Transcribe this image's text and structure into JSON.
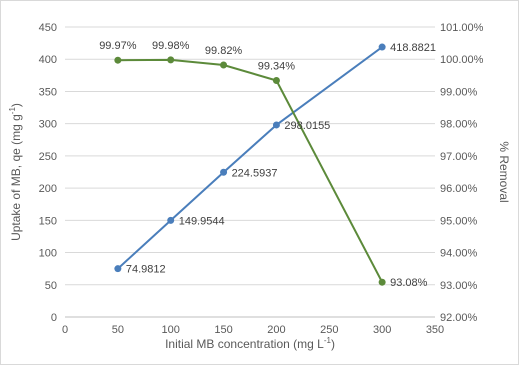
{
  "chart_data": {
    "type": "line",
    "title": "",
    "xlabel": "Initial MB concentration (mg L",
    "xlabel_sup": "-1",
    "xlabel_tail": ")",
    "ylabel": "Uptake of MB, qe (mg g",
    "ylabel_sup": "-1",
    "ylabel_tail": ")",
    "y2label": "% Removal",
    "xlim": [
      0,
      350
    ],
    "ylim": [
      0,
      450
    ],
    "y2lim": [
      92,
      101
    ],
    "x_ticks": [
      "0",
      "50",
      "100",
      "150",
      "200",
      "250",
      "300",
      "350"
    ],
    "y_ticks": [
      "0",
      "50",
      "100",
      "150",
      "200",
      "250",
      "300",
      "350",
      "400",
      "450"
    ],
    "y2_ticks": [
      "92.00%",
      "93.00%",
      "94.00%",
      "95.00%",
      "96.00%",
      "97.00%",
      "98.00%",
      "99.00%",
      "100.00%",
      "101.00%"
    ],
    "grid": true,
    "legend": "none",
    "series": [
      {
        "axis": "left",
        "color": "#4a7ebb",
        "x": [
          50,
          100,
          150,
          200,
          300
        ],
        "values": [
          74.9812,
          149.9544,
          224.5937,
          298.0155,
          418.8821
        ],
        "labels": [
          "74.9812",
          "149.9544",
          "224.5937",
          "298.0155",
          "418.8821"
        ]
      },
      {
        "axis": "right",
        "color": "#5c8a3a",
        "x": [
          50,
          100,
          150,
          200,
          300
        ],
        "values": [
          99.97,
          99.98,
          99.82,
          99.34,
          93.08
        ],
        "labels": [
          "99.97%",
          "99.98%",
          "99.82%",
          "99.34%",
          "93.08%"
        ]
      }
    ]
  }
}
